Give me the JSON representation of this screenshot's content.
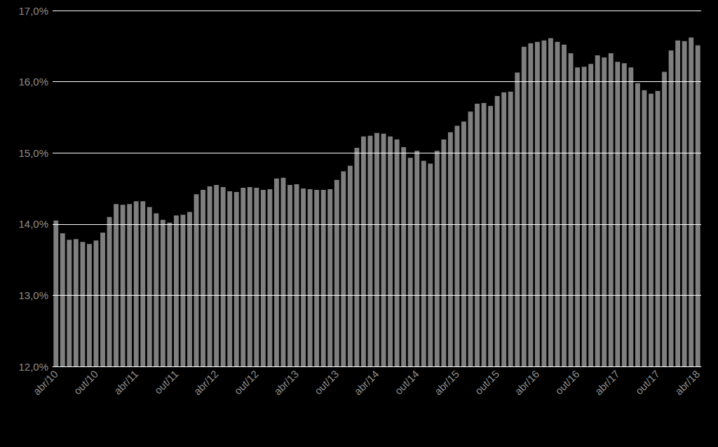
{
  "chart_data": {
    "type": "bar",
    "categories": [
      "abr/10",
      null,
      null,
      null,
      null,
      null,
      "out/10",
      null,
      null,
      null,
      null,
      null,
      "abr/11",
      null,
      null,
      null,
      null,
      null,
      "out/11",
      null,
      null,
      null,
      null,
      null,
      "abr/12",
      null,
      null,
      null,
      null,
      null,
      "out/12",
      null,
      null,
      null,
      null,
      null,
      "abr/13",
      null,
      null,
      null,
      null,
      null,
      "out/13",
      null,
      null,
      null,
      null,
      null,
      "abr/14",
      null,
      null,
      null,
      null,
      null,
      "out/14",
      null,
      null,
      null,
      null,
      null,
      "abr/15",
      null,
      null,
      null,
      null,
      null,
      "out/15",
      null,
      null,
      null,
      null,
      null,
      "abr/16",
      null,
      null,
      null,
      null,
      null,
      "out/16",
      null,
      null,
      null,
      null,
      null,
      "abr/17",
      null,
      null,
      null,
      null,
      null,
      "out/17",
      null,
      null,
      null,
      null,
      null,
      "abr/18"
    ],
    "values": [
      14.05,
      13.87,
      13.78,
      13.79,
      13.75,
      13.72,
      13.77,
      13.88,
      14.1,
      14.28,
      14.27,
      14.28,
      14.32,
      14.32,
      14.24,
      14.15,
      14.06,
      14.02,
      14.12,
      14.13,
      14.17,
      14.42,
      14.48,
      14.53,
      14.55,
      14.52,
      14.46,
      14.45,
      14.51,
      14.52,
      14.51,
      14.48,
      14.49,
      14.64,
      14.65,
      14.55,
      14.56,
      14.5,
      14.49,
      14.48,
      14.48,
      14.49,
      14.62,
      14.74,
      14.82,
      15.07,
      15.23,
      15.24,
      15.28,
      15.27,
      15.23,
      15.19,
      15.08,
      14.93,
      15.03,
      14.89,
      14.85,
      15.03,
      15.19,
      15.29,
      15.38,
      15.44,
      15.58,
      15.69,
      15.7,
      15.66,
      15.8,
      15.85,
      15.86,
      16.13,
      16.49,
      16.54,
      16.56,
      16.58,
      16.61,
      16.56,
      16.52,
      16.4,
      16.2,
      16.21,
      16.25,
      16.37,
      16.34,
      16.4,
      16.28,
      16.26,
      16.2,
      15.98,
      15.88,
      15.83,
      15.87,
      16.14,
      16.44,
      16.58,
      16.57,
      16.62,
      16.51
    ],
    "color": "#7f7f7f",
    "ylim": [
      12,
      17
    ],
    "yticks": [
      {
        "value": 12,
        "label": "12,0%"
      },
      {
        "value": 13,
        "label": "13,0%"
      },
      {
        "value": 14,
        "label": "14,0%"
      },
      {
        "value": 15,
        "label": "15,0%"
      },
      {
        "value": 16,
        "label": "16,0%"
      },
      {
        "value": 17,
        "label": "17,0%"
      }
    ],
    "grid": true
  }
}
